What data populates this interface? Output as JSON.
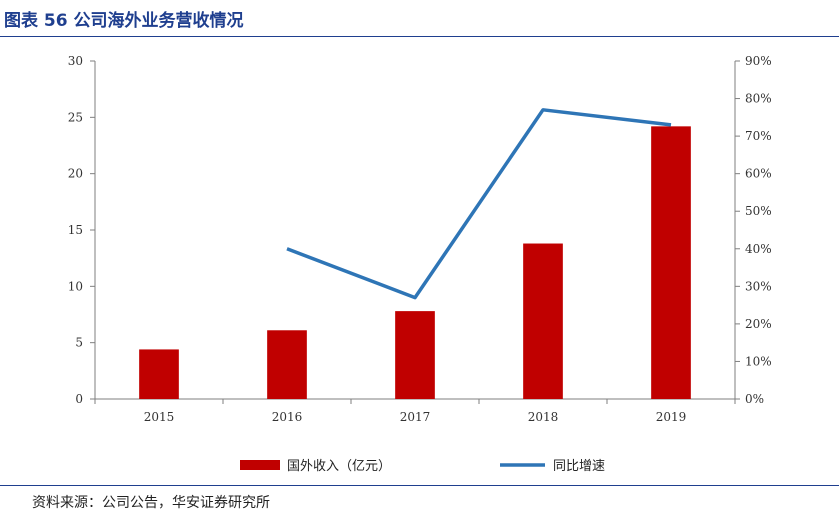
{
  "figure": {
    "title": "图表 56 公司海外业务营收情况",
    "source": "资料来源：公司公告，华安证券研究所"
  },
  "colors": {
    "bar": "#c00000",
    "line": "#2e75b6",
    "rule": "#1f3f8f"
  },
  "chart_data": {
    "type": "bar",
    "categories": [
      "2015",
      "2016",
      "2017",
      "2018",
      "2019"
    ],
    "series": [
      {
        "name": "国外收入（亿元）",
        "type": "bar",
        "axis": "left",
        "values": [
          4.4,
          6.1,
          7.8,
          13.8,
          24.2
        ]
      },
      {
        "name": "同比增速",
        "type": "line",
        "axis": "right",
        "values": [
          null,
          40,
          27,
          77,
          73
        ]
      }
    ],
    "y_left": {
      "min": 0,
      "max": 30,
      "step": 5,
      "ticks": [
        "0",
        "5",
        "10",
        "15",
        "20",
        "25",
        "30"
      ]
    },
    "y_right": {
      "min": 0,
      "max": 90,
      "step": 10,
      "ticks": [
        "0%",
        "10%",
        "20%",
        "30%",
        "40%",
        "50%",
        "60%",
        "70%",
        "80%",
        "90%"
      ]
    },
    "legend_position": "bottom",
    "grid": false
  }
}
